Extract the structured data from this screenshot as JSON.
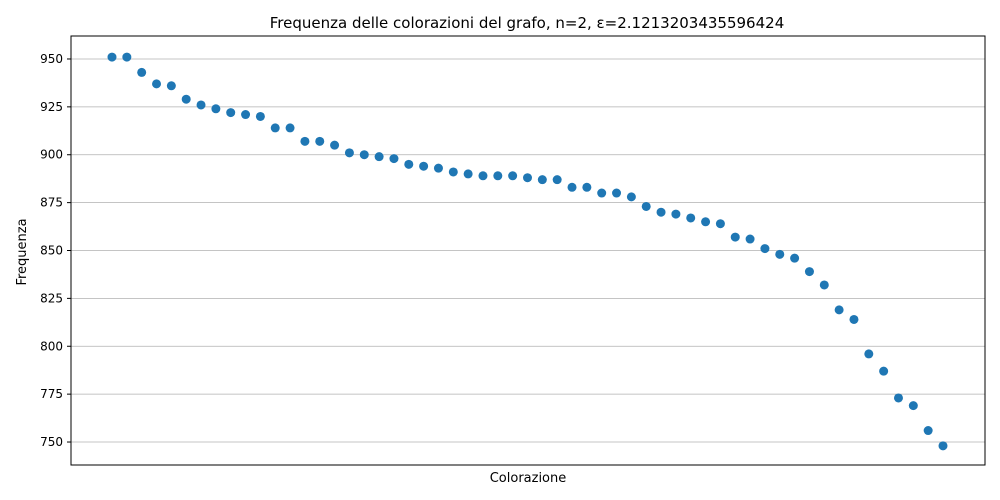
{
  "chart_data": {
    "type": "scatter",
    "title": "Frequenza delle colorazioni del grafo, n=2, ε=2.1213203435596424",
    "xlabel": "Colorazione",
    "ylabel": "Frequenza",
    "x_ticks_visible": false,
    "grid": "horizontal",
    "color": "#1f77b4",
    "ylim": [
      738,
      962
    ],
    "yticks": [
      750,
      775,
      800,
      825,
      850,
      875,
      900,
      925,
      950
    ],
    "values": [
      951,
      951,
      943,
      937,
      936,
      929,
      926,
      924,
      922,
      921,
      920,
      914,
      914,
      907,
      907,
      905,
      901,
      900,
      899,
      898,
      895,
      894,
      893,
      891,
      890,
      889,
      889,
      889,
      888,
      887,
      887,
      883,
      883,
      880,
      880,
      878,
      873,
      870,
      869,
      867,
      865,
      864,
      857,
      856,
      851,
      848,
      846,
      839,
      832,
      819,
      814,
      796,
      787,
      773,
      769,
      756,
      748
    ]
  }
}
